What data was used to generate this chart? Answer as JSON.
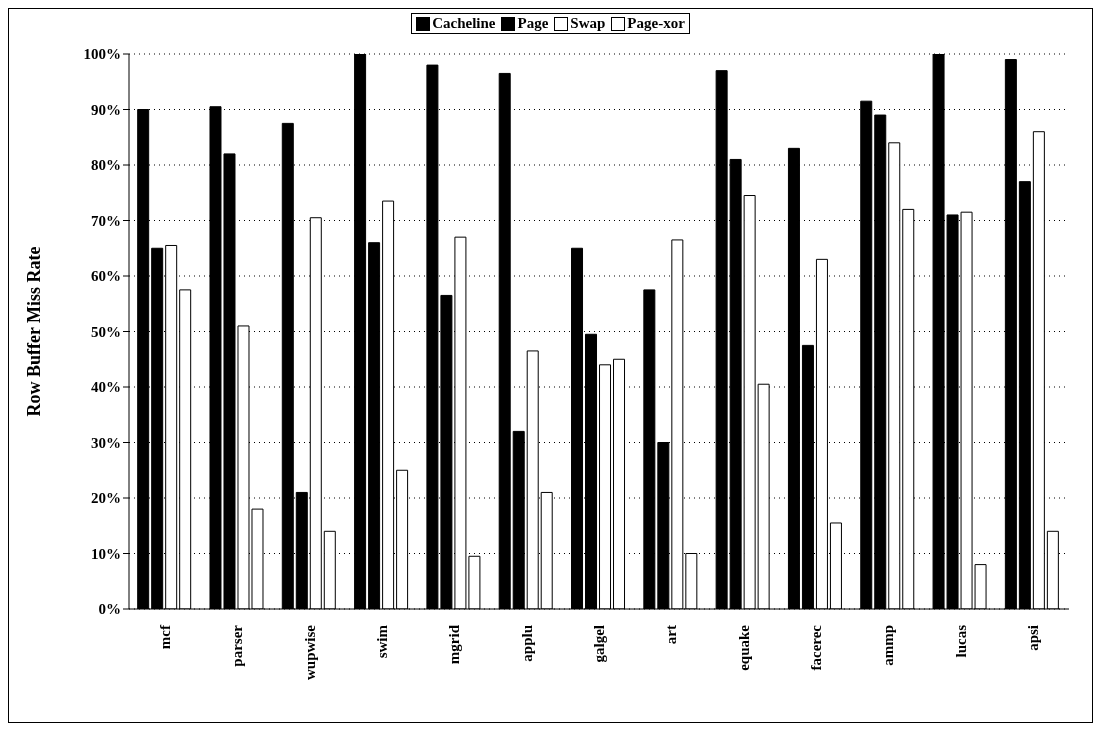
{
  "chart_data": {
    "type": "bar",
    "ylabel": "Row Buffer Miss Rate",
    "categories": [
      "mcf",
      "parser",
      "wupwise",
      "swim",
      "mgrid",
      "applu",
      "galgel",
      "art",
      "equake",
      "facerec",
      "ammp",
      "lucas",
      "apsi"
    ],
    "series": [
      {
        "name": "Cacheline",
        "color": "#000000",
        "values": [
          90,
          90.5,
          87.5,
          100,
          98,
          96.5,
          65,
          57.5,
          97,
          83,
          91.5,
          100,
          99
        ]
      },
      {
        "name": "Page",
        "color": "#000000",
        "values": [
          65,
          82,
          21,
          66,
          56.5,
          32,
          49.5,
          30,
          81,
          47.5,
          89,
          71,
          77
        ]
      },
      {
        "name": "Swap",
        "color": "#ffffff",
        "values": [
          65.5,
          51,
          70.5,
          73.5,
          67,
          46.5,
          44,
          66.5,
          74.5,
          63,
          84,
          71.5,
          86
        ]
      },
      {
        "name": "Page-xor",
        "color": "#ffffff",
        "values": [
          57.5,
          18,
          14,
          25,
          9.5,
          21,
          45,
          10,
          40.5,
          15.5,
          72,
          8,
          14
        ]
      }
    ],
    "ylim": [
      0,
      100
    ],
    "yticks": [
      {
        "value": 0,
        "label": "0%"
      },
      {
        "value": 10,
        "label": "10%"
      },
      {
        "value": 20,
        "label": "20%"
      },
      {
        "value": 30,
        "label": "30%"
      },
      {
        "value": 40,
        "label": "40%"
      },
      {
        "value": 50,
        "label": "50%"
      },
      {
        "value": 60,
        "label": "60%"
      },
      {
        "value": 70,
        "label": "70%"
      },
      {
        "value": 80,
        "label": "80%"
      },
      {
        "value": 90,
        "label": "90%"
      },
      {
        "value": 100,
        "label": "100%"
      }
    ],
    "grid": "y",
    "legend": "top"
  }
}
